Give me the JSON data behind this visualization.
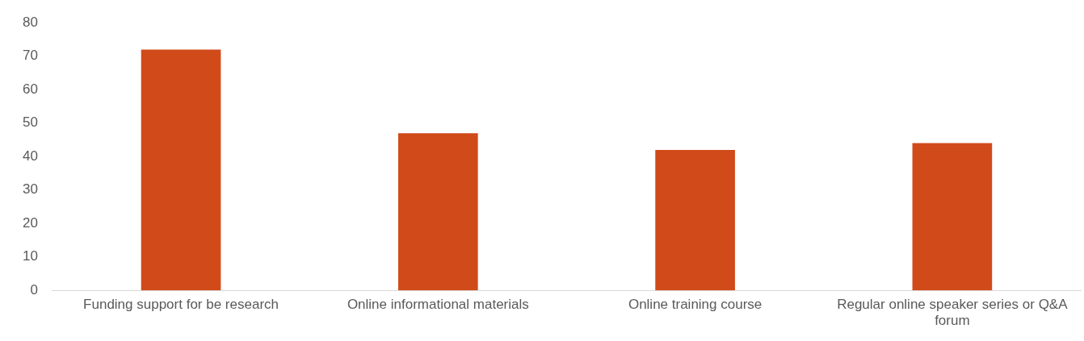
{
  "chart_data": {
    "type": "bar",
    "categories": [
      "Funding support for be research",
      "Online informational materials",
      "Online training course",
      "Regular online speaker series or Q&A forum"
    ],
    "values": [
      72,
      47,
      42,
      44
    ],
    "color": "#d14a19",
    "ylim": [
      0,
      80
    ],
    "yticks": [
      0,
      10,
      20,
      30,
      40,
      50,
      60,
      70,
      80
    ],
    "grid": false,
    "legend": false
  }
}
